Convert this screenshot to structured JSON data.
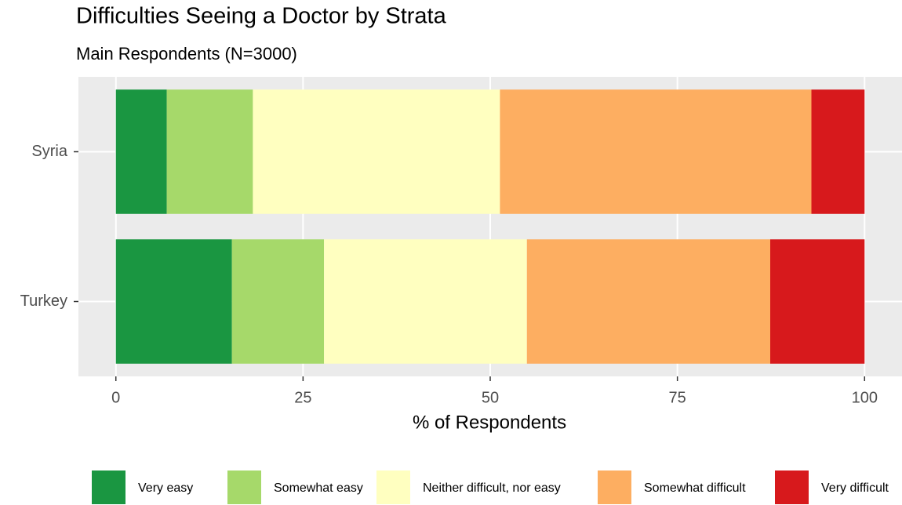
{
  "chart_data": {
    "type": "bar",
    "orientation": "horizontal",
    "stacked": true,
    "title": "Difficulties Seeing a Doctor by Strata",
    "subtitle": "Main Respondents (N=3000)",
    "x_label": "% of Respondents",
    "categories": [
      "Syria",
      "Turkey"
    ],
    "series": [
      {
        "name": "Very easy",
        "color": "#1a9641",
        "values": [
          6.8,
          15.5
        ]
      },
      {
        "name": "Somewhat easy",
        "color": "#a6d96a",
        "values": [
          11.5,
          12.3
        ]
      },
      {
        "name": "Neither difficult, nor easy",
        "color": "#ffffc0",
        "values": [
          33.0,
          27.1
        ]
      },
      {
        "name": "Somewhat difficult",
        "color": "#fdae61",
        "values": [
          41.6,
          32.5
        ]
      },
      {
        "name": "Very difficult",
        "color": "#d7191c",
        "values": [
          7.1,
          12.6
        ]
      }
    ],
    "xlim": [
      -5,
      105
    ],
    "xticks": [
      0,
      25,
      50,
      75,
      100
    ],
    "grid": true,
    "legend": "bottom"
  }
}
